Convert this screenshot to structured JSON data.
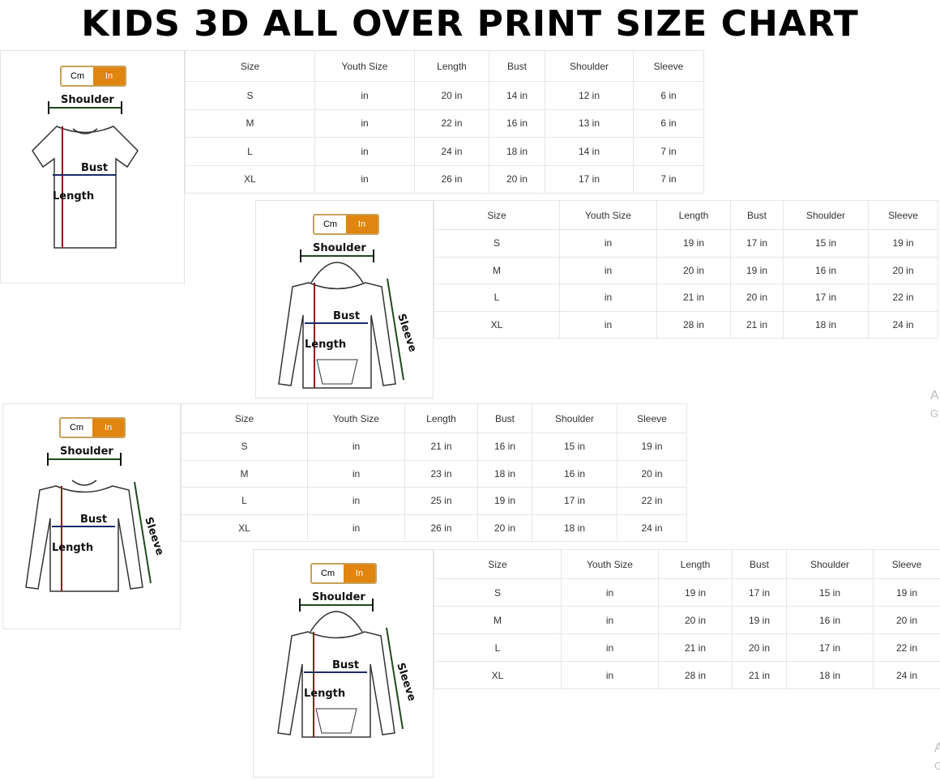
{
  "title": "KIDS 3D ALL OVER PRINT SIZE CHART",
  "toggle": {
    "cm": "Cm",
    "in": "In"
  },
  "labels": {
    "shoulder": "Shoulder",
    "bust": "Bust",
    "length": "Length",
    "sleeve": "Sleeve"
  },
  "headers": [
    "Size",
    "Youth Size",
    "Length",
    "Bust",
    "Shoulder",
    "Sleeve"
  ],
  "charts": [
    {
      "garment": "t-shirt",
      "rows": [
        [
          "S",
          "in",
          "20 in",
          "14 in",
          "12 in",
          "6 in"
        ],
        [
          "M",
          "in",
          "22 in",
          "16 in",
          "13 in",
          "6 in"
        ],
        [
          "L",
          "in",
          "24 in",
          "18 in",
          "14 in",
          "7 in"
        ],
        [
          "XL",
          "in",
          "26 in",
          "20 in",
          "17 in",
          "7 in"
        ]
      ]
    },
    {
      "garment": "zip-hoodie",
      "rows": [
        [
          "S",
          "in",
          "19 in",
          "17 in",
          "15 in",
          "19 in"
        ],
        [
          "M",
          "in",
          "20 in",
          "19 in",
          "16 in",
          "20 in"
        ],
        [
          "L",
          "in",
          "21 in",
          "20 in",
          "17 in",
          "22 in"
        ],
        [
          "XL",
          "in",
          "28 in",
          "21 in",
          "18 in",
          "24 in"
        ]
      ]
    },
    {
      "garment": "long-sleeve",
      "rows": [
        [
          "S",
          "in",
          "21 in",
          "16 in",
          "15 in",
          "19 in"
        ],
        [
          "M",
          "in",
          "23 in",
          "18 in",
          "16 in",
          "20 in"
        ],
        [
          "L",
          "in",
          "25 in",
          "19 in",
          "17 in",
          "22 in"
        ],
        [
          "XL",
          "in",
          "26 in",
          "20 in",
          "18 in",
          "24 in"
        ]
      ]
    },
    {
      "garment": "pullover-hoodie",
      "rows": [
        [
          "S",
          "in",
          "19 in",
          "17 in",
          "15 in",
          "19 in"
        ],
        [
          "M",
          "in",
          "20 in",
          "19 in",
          "16 in",
          "20 in"
        ],
        [
          "L",
          "in",
          "21 in",
          "20 in",
          "17 in",
          "22 in"
        ],
        [
          "XL",
          "in",
          "28 in",
          "21 in",
          "18 in",
          "24 in"
        ]
      ]
    }
  ],
  "fragments": [
    {
      "a": "A",
      "b": "G"
    },
    {
      "a": "A",
      "b": "G"
    }
  ],
  "colors": {
    "accent": "#e0850f",
    "toggle_border": "#c8a15a",
    "length_arrow": "#8b1a1a",
    "bust_arrow": "#1a2a6b",
    "shoulder_arrow": "#1f4a1f"
  }
}
